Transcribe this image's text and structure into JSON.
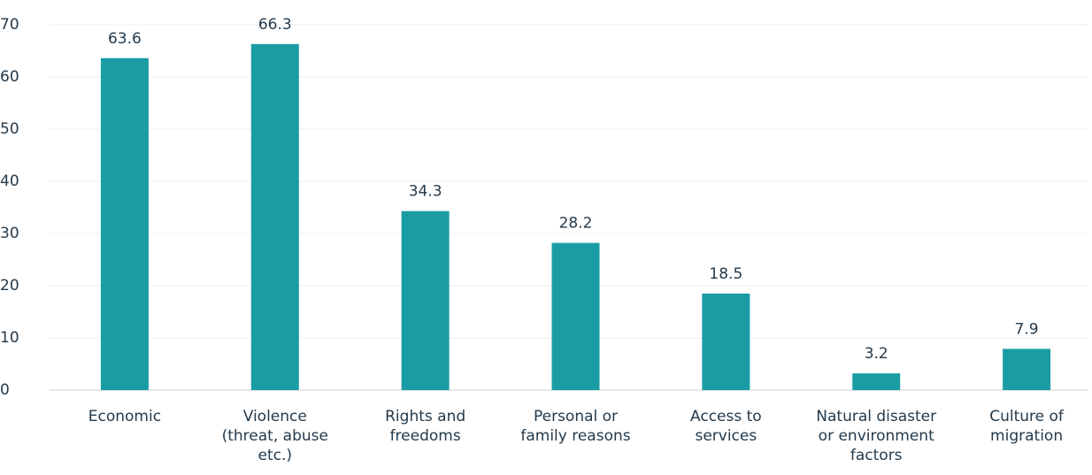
{
  "chart_data": {
    "type": "bar",
    "categories": [
      "Economic",
      "Violence (threat, abuse etc.)",
      "Rights and freedoms",
      "Personal or family reasons",
      "Access to services",
      "Natural disaster or environment factors",
      "Culture of migration"
    ],
    "values": [
      63.6,
      66.3,
      34.3,
      28.2,
      18.5,
      3.2,
      7.9
    ],
    "color": "#1a9ca4",
    "ylim": [
      0,
      70
    ],
    "yticks": [
      0,
      10,
      20,
      30,
      40,
      50,
      60,
      70
    ],
    "grid": true
  }
}
